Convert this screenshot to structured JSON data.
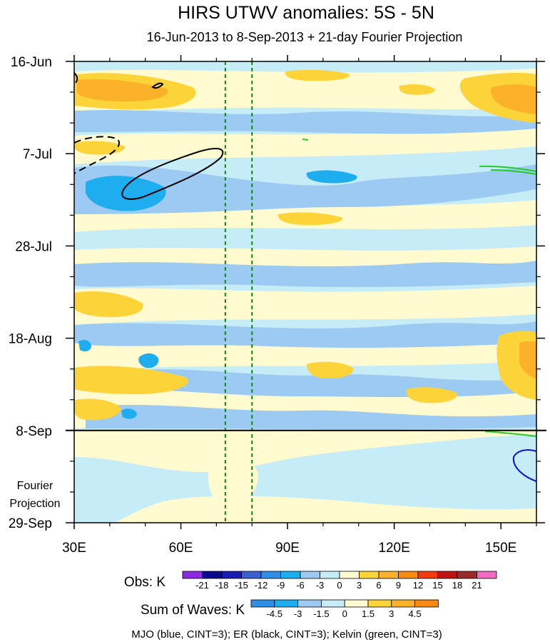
{
  "chart_data": {
    "type": "heatmap",
    "title": "HIRS UTWV anomalies: 5S - 5N",
    "subtitle": "16-Jun-2013 to 8-Sep-2013 + 21-day Fourier Projection",
    "x_ticks": [
      "30E",
      "60E",
      "90E",
      "120E",
      "150E"
    ],
    "x_tick_values": [
      30,
      60,
      90,
      120,
      150
    ],
    "xlim": [
      30,
      160
    ],
    "y_ticks": [
      "16-Jun",
      "7-Jul",
      "28-Jul",
      "18-Aug",
      "8-Sep",
      "29-Sep"
    ],
    "y_tick_days": [
      0,
      21,
      42,
      63,
      84,
      105
    ],
    "ylim_days": [
      0,
      105
    ],
    "projection_start_day": 84,
    "projection_label": [
      "Fourier",
      "Projection"
    ],
    "reference_lines_lon": [
      72.5,
      80
    ],
    "obs_colorbar": {
      "label": "Obs: K",
      "levels": [
        "-21",
        "-18",
        "-15",
        "-12",
        "-9",
        "-6",
        "-3",
        "0",
        "3",
        "6",
        "9",
        "12",
        "15",
        "18",
        "21"
      ],
      "colors": [
        "#8a2be2",
        "#0a0a8c",
        "#1a1ab4",
        "#3a5fd0",
        "#2f8fe8",
        "#1eaef0",
        "#9ccaf2",
        "#c6ecf8",
        "#fffad0",
        "#fcd43a",
        "#fbb12a",
        "#f78a12",
        "#f23c0f",
        "#c01414",
        "#9b2a2a",
        "#f06cc0"
      ]
    },
    "waves_colorbar": {
      "label": "Sum of Waves: K",
      "levels": [
        "-4.5",
        "-3",
        "-1.5",
        "0",
        "1.5",
        "3",
        "4.5"
      ],
      "colors": [
        "#2f8fe8",
        "#1eaef0",
        "#9ccaf2",
        "#c6ecf8",
        "#fffad0",
        "#fcd43a",
        "#fbb12a",
        "#f78a12"
      ]
    },
    "footer": "MJO (blue, CINT=3); ER (black, CINT=3); Kelvin (green, CINT=3)",
    "contours": [
      {
        "name": "ER positive",
        "color": "#000000",
        "style": "solid"
      },
      {
        "name": "ER negative",
        "color": "#000000",
        "style": "dashed"
      },
      {
        "name": "Kelvin",
        "color": "#22cc22",
        "style": "solid"
      },
      {
        "name": "MJO",
        "color": "#1010cc",
        "style": "solid"
      }
    ]
  }
}
